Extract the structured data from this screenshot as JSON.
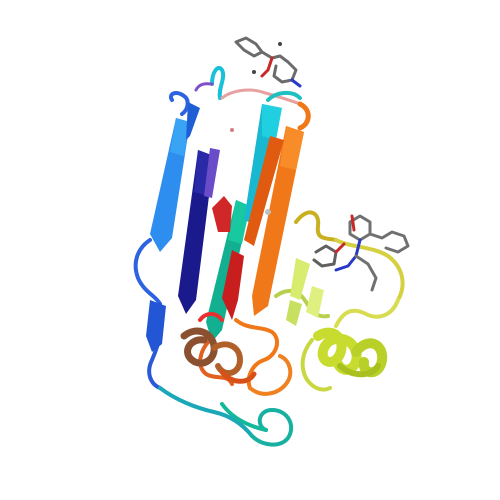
{
  "figure": {
    "background": "#ffffff",
    "style": "protein-ribbon-cartoon",
    "palette": {
      "blue": "#1f5fd6",
      "light_blue": "#2d9bf0",
      "navy": "#1a1a8c",
      "teal": "#12b8a0",
      "cyan": "#18c8d8",
      "red": "#d62020",
      "orange": "#f07818",
      "dark_orange": "#e05a10",
      "yellow_green": "#c8dc40",
      "lime": "#d8ec70",
      "purple": "#6a4cc8",
      "stick_gray": "#707070",
      "stick_blue": "#2838c8",
      "stick_red": "#c82828"
    }
  }
}
